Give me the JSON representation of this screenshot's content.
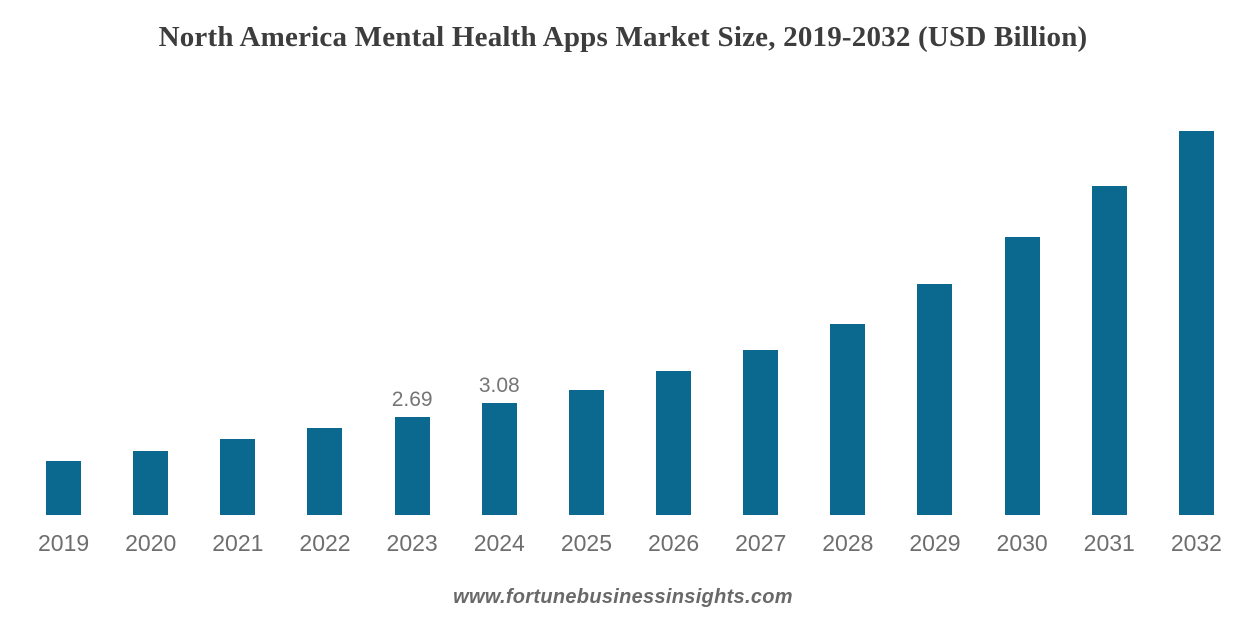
{
  "title": "North America Mental Health Apps Market Size, 2019-2032 (USD Billion)",
  "footer": "www.fortunebusinessinsights.com",
  "colors": {
    "bar": "#0b688f",
    "title_text": "#3d3d3d",
    "axis_label": "#6e6e6e",
    "data_label": "#767676",
    "footer_text": "#696969",
    "background": "#ffffff"
  },
  "chart_data": {
    "type": "bar",
    "title": "North America Mental Health Apps Market Size, 2019-2032 (USD Billion)",
    "units": "USD Billion",
    "categories": [
      "2019",
      "2020",
      "2021",
      "2022",
      "2023",
      "2024",
      "2025",
      "2026",
      "2027",
      "2028",
      "2029",
      "2030",
      "2031",
      "2032"
    ],
    "values": [
      1.5,
      1.76,
      2.1,
      2.4,
      2.69,
      3.08,
      3.44,
      3.96,
      4.54,
      5.26,
      6.36,
      7.66,
      9.07,
      10.59
    ],
    "data_labels": [
      "",
      "",
      "",
      "",
      "2.69",
      "3.08",
      "",
      "",
      "",
      "",
      "",
      "",
      "",
      ""
    ],
    "labeled_points": {
      "2023": 2.69,
      "2024": 3.08
    },
    "xlabel": "",
    "ylabel": "",
    "ylim": [
      0,
      14.2
    ],
    "y_axis_shown": false,
    "grid": false,
    "legend": false
  }
}
